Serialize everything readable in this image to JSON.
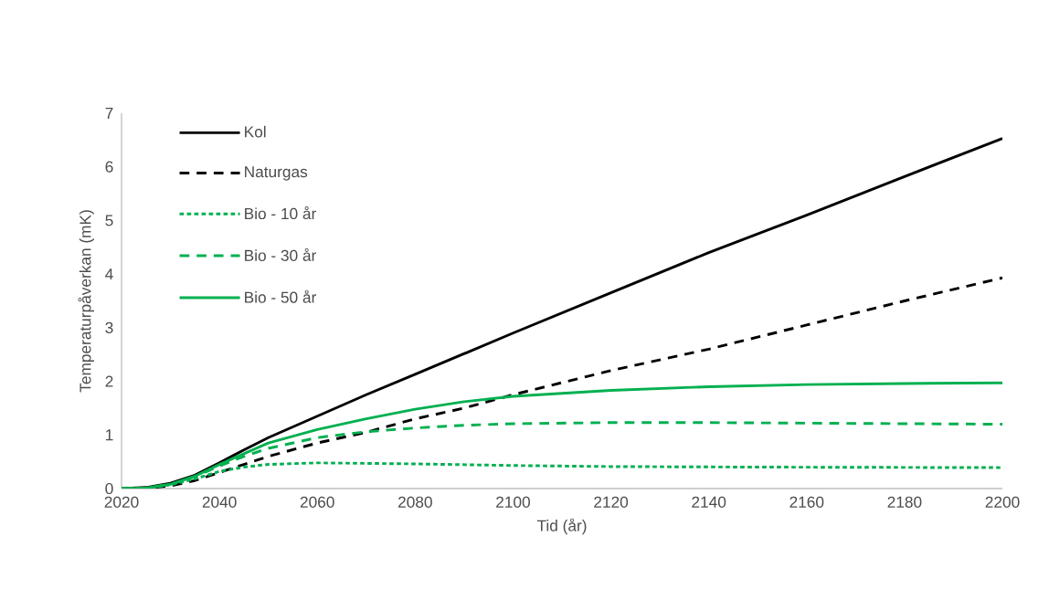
{
  "chart_data": {
    "type": "line",
    "xlabel": "Tid (år)",
    "ylabel": "Temperaturpåverkan  (mK)",
    "xlim": [
      2020,
      2200
    ],
    "ylim": [
      0,
      7
    ],
    "xticks": [
      2020,
      2040,
      2060,
      2080,
      2100,
      2120,
      2140,
      2160,
      2180,
      2200
    ],
    "yticks": [
      0,
      1,
      2,
      3,
      4,
      5,
      6,
      7
    ],
    "grid": false,
    "legend": "top left",
    "marker": "none",
    "series": [
      {
        "name": "Kol",
        "color": "#000000",
        "line_style": "solid",
        "x": [
          2020,
          2025,
          2030,
          2035,
          2040,
          2045,
          2050,
          2060,
          2070,
          2080,
          2100,
          2120,
          2140,
          2160,
          2180,
          2200
        ],
        "values": [
          0,
          0.02,
          0.1,
          0.25,
          0.48,
          0.72,
          0.95,
          1.35,
          1.75,
          2.13,
          2.9,
          3.65,
          4.4,
          5.1,
          5.82,
          6.53
        ]
      },
      {
        "name": "Naturgas",
        "color": "#000000",
        "line_style": "dashed",
        "x": [
          2020,
          2025,
          2030,
          2035,
          2040,
          2045,
          2050,
          2060,
          2070,
          2080,
          2090,
          2100,
          2120,
          2140,
          2160,
          2180,
          2200
        ],
        "values": [
          0,
          0.01,
          0.05,
          0.15,
          0.3,
          0.45,
          0.6,
          0.85,
          1.05,
          1.3,
          1.5,
          1.75,
          2.2,
          2.6,
          3.05,
          3.5,
          3.93
        ]
      },
      {
        "name": "Bio - 10 år",
        "color": "#00b050",
        "line_style": "dotted",
        "x": [
          2020,
          2025,
          2030,
          2035,
          2040,
          2045,
          2050,
          2060,
          2070,
          2080,
          2100,
          2120,
          2150,
          2200
        ],
        "values": [
          0,
          0.01,
          0.07,
          0.18,
          0.32,
          0.4,
          0.45,
          0.48,
          0.47,
          0.46,
          0.43,
          0.41,
          0.4,
          0.39
        ]
      },
      {
        "name": "Bio - 30 år",
        "color": "#00b050",
        "line_style": "dashed",
        "x": [
          2020,
          2025,
          2030,
          2035,
          2040,
          2045,
          2050,
          2060,
          2070,
          2080,
          2090,
          2100,
          2120,
          2140,
          2160,
          2180,
          2200
        ],
        "values": [
          0,
          0.01,
          0.08,
          0.22,
          0.42,
          0.6,
          0.75,
          0.95,
          1.06,
          1.13,
          1.18,
          1.21,
          1.23,
          1.23,
          1.22,
          1.21,
          1.2
        ]
      },
      {
        "name": "Bio - 50 år",
        "color": "#00b050",
        "line_style": "solid",
        "x": [
          2020,
          2025,
          2030,
          2035,
          2040,
          2045,
          2050,
          2060,
          2070,
          2080,
          2090,
          2100,
          2120,
          2140,
          2160,
          2180,
          2200
        ],
        "values": [
          0,
          0.01,
          0.08,
          0.23,
          0.45,
          0.65,
          0.85,
          1.1,
          1.3,
          1.48,
          1.62,
          1.72,
          1.83,
          1.9,
          1.94,
          1.96,
          1.97
        ]
      }
    ]
  }
}
